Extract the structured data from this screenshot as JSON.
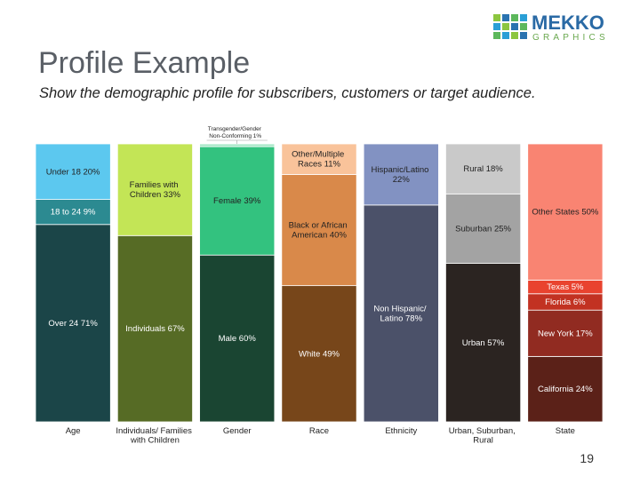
{
  "slide": {
    "logo_word": "MEKKO",
    "logo_sub": "GRAPHICS",
    "page_number": "19"
  },
  "chart_data": {
    "type": "stacked_percent_bar",
    "title": "Profile Example",
    "subtitle": "Show the demographic profile for subscribers, customers or target audience.",
    "columns": [
      {
        "category": "Age",
        "segments": [
          {
            "label": "Over 24 71%",
            "value": 71,
            "color": "#1b4548"
          },
          {
            "label": "18 to 24 9%",
            "value": 9,
            "color": "#2c8a91"
          },
          {
            "label": "Under 18 20%",
            "value": 20,
            "color": "#5cc8ef"
          }
        ]
      },
      {
        "category": "Individuals/ Families with Children",
        "segments": [
          {
            "label": "Individuals 67%",
            "value": 67,
            "color": "#566b25"
          },
          {
            "label": "Families with Children 33%",
            "value": 33,
            "color": "#c3e556"
          }
        ]
      },
      {
        "category": "Gender",
        "segments": [
          {
            "label": "Male 60%",
            "value": 60,
            "color": "#1a4532"
          },
          {
            "label": "Female 39%",
            "value": 39,
            "color": "#33c27f"
          },
          {
            "label": "Transgender/Gender Non-Conforming 1%",
            "value": 1,
            "color": "#a8e8c8"
          }
        ]
      },
      {
        "category": "Race",
        "segments": [
          {
            "label": "White 49%",
            "value": 49,
            "color": "#77461a"
          },
          {
            "label": "Black or African American 40%",
            "value": 40,
            "color": "#d9894a"
          },
          {
            "label": "Other/Multiple Races 11%",
            "value": 11,
            "color": "#f9c39a"
          }
        ]
      },
      {
        "category": "Ethnicity",
        "segments": [
          {
            "label": "Non Hispanic/ Latino 78%",
            "value": 78,
            "color": "#4b5169"
          },
          {
            "label": "Hispanic/Latino 22%",
            "value": 22,
            "color": "#8292c2"
          }
        ]
      },
      {
        "category": "Urban, Suburban, Rural",
        "segments": [
          {
            "label": "Urban 57%",
            "value": 57,
            "color": "#2b2421"
          },
          {
            "label": "Suburban 25%",
            "value": 25,
            "color": "#a3a3a3"
          },
          {
            "label": "Rural 18%",
            "value": 18,
            "color": "#c9c9c9"
          }
        ]
      },
      {
        "category": "State",
        "segments": [
          {
            "label": "California 24%",
            "value": 24,
            "color": "#5b2118"
          },
          {
            "label": "New York 17%",
            "value": 17,
            "color": "#912b21"
          },
          {
            "label": "Florida 6%",
            "value": 6,
            "color": "#c23222"
          },
          {
            "label": "Texas 5%",
            "value": 5,
            "color": "#e9432f"
          },
          {
            "label": "Other States 50%",
            "value": 50,
            "color": "#f98472"
          }
        ]
      }
    ]
  }
}
